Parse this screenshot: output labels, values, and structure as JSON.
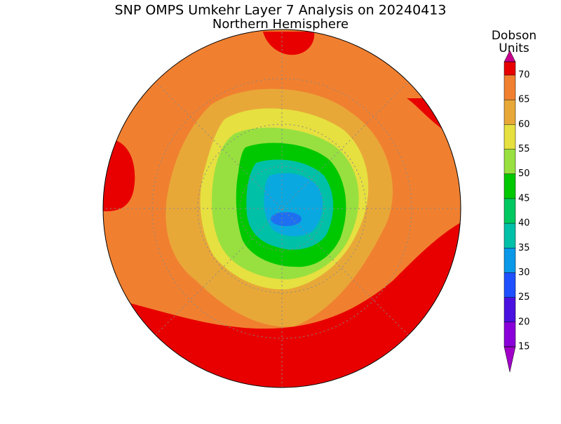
{
  "title": "SNP OMPS Umkehr Layer 7 Analysis on 20240413",
  "subtitle": "Northern Hemisphere",
  "colorbar": {
    "title_lines": [
      "Dobson",
      "Units"
    ],
    "levels": [
      15,
      20,
      25,
      30,
      35,
      40,
      45,
      50,
      55,
      60,
      65,
      70
    ],
    "colors": [
      "#8a00d8",
      "#4a10e0",
      "#1e50ff",
      "#0a98e8",
      "#00c0a8",
      "#00c860",
      "#00c800",
      "#98e040",
      "#e6e040",
      "#e8a838",
      "#f08030"
    ],
    "under_color": "#a000c8",
    "over_color": "#c8008c",
    "top_bin_color": "#e80000"
  }
}
